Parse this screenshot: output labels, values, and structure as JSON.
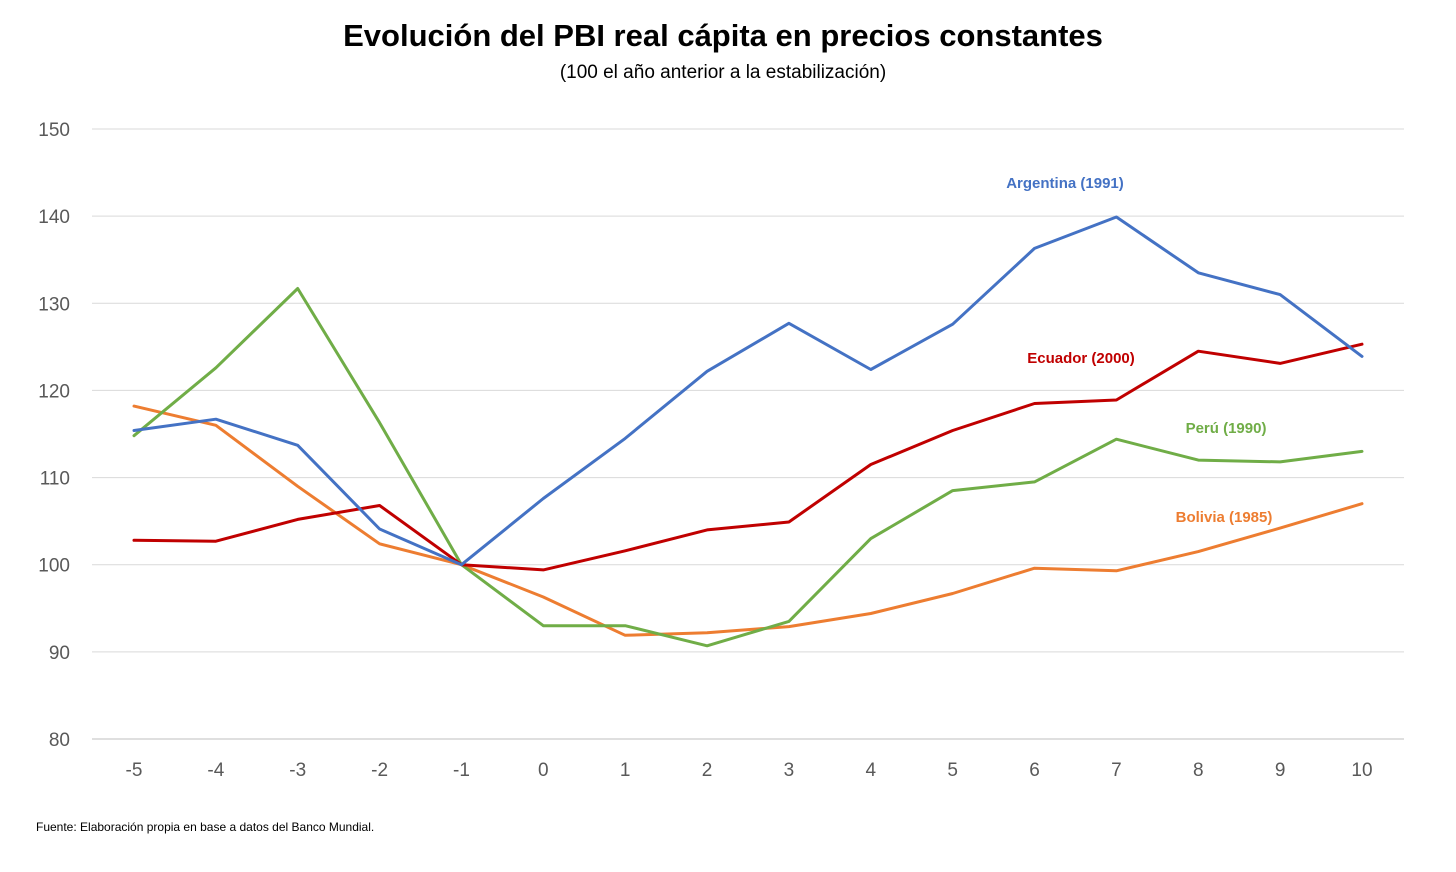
{
  "chart_data": {
    "type": "line",
    "title": "Evolución del PBI real cápita en precios constantes",
    "subtitle": "(100 el año anterior a la estabilización)",
    "x": [
      -5,
      -4,
      -3,
      -2,
      -1,
      0,
      1,
      2,
      3,
      4,
      5,
      6,
      7,
      8,
      9,
      10
    ],
    "xtick_labels": [
      "-5",
      "-4",
      "-3",
      "-2",
      "-1",
      "0",
      "1",
      "2",
      "3",
      "4",
      "5",
      "6",
      "7",
      "8",
      "9",
      "10"
    ],
    "ylim": [
      80,
      150
    ],
    "yticks": [
      80,
      90,
      100,
      110,
      120,
      130,
      140,
      150
    ],
    "grid": true,
    "series": [
      {
        "name": "Argentina (1991)",
        "color": "#4472C4",
        "values": [
          115.4,
          116.7,
          113.7,
          104.1,
          100,
          107.6,
          114.5,
          122.2,
          127.7,
          122.4,
          127.6,
          136.3,
          139.9,
          133.5,
          131.0,
          123.9
        ]
      },
      {
        "name": "Ecuador (2000)",
        "color": "#C00000",
        "values": [
          102.8,
          102.7,
          105.2,
          106.8,
          100,
          99.4,
          101.6,
          104.0,
          104.9,
          111.5,
          115.4,
          118.5,
          118.9,
          124.5,
          123.1,
          125.3
        ]
      },
      {
        "name": "Perú (1990)",
        "color": "#70AD47",
        "values": [
          114.8,
          122.6,
          131.7,
          116.3,
          100,
          93.0,
          93.0,
          90.7,
          93.5,
          103.0,
          108.5,
          109.5,
          114.4,
          112.0,
          111.8,
          113.0
        ]
      },
      {
        "name": "Bolivia (1985)",
        "color": "#ED7D31",
        "values": [
          118.2,
          116.0,
          109.0,
          102.4,
          100,
          96.3,
          91.9,
          92.2,
          92.9,
          94.4,
          96.7,
          99.6,
          99.3,
          101.5,
          104.2,
          107.0
        ]
      }
    ]
  },
  "footer": {
    "source": "Fuente: Elaboración propia en base a datos del Banco Mundial."
  }
}
